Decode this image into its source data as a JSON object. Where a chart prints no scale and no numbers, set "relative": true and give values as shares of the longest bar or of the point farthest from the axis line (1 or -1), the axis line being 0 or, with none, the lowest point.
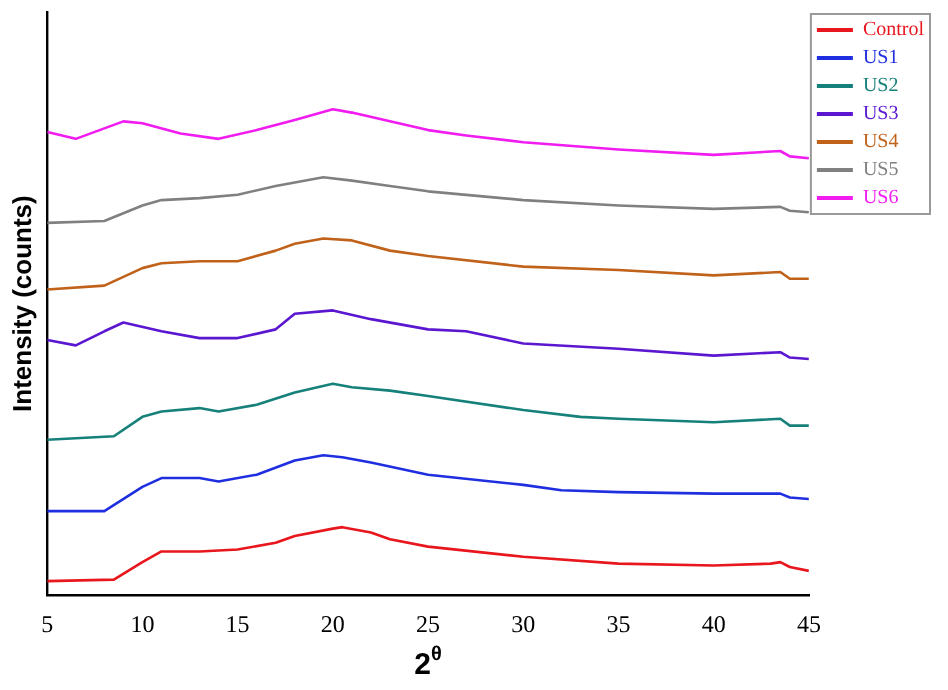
{
  "chart_data": {
    "type": "line",
    "xlabel": "2$^{θ}$",
    "ylabel": "Intensity (counts)",
    "relative": true,
    "xlim": [
      5,
      45
    ],
    "xticks": [
      5,
      10,
      15,
      20,
      25,
      30,
      35,
      40,
      45
    ],
    "tick_labels": "x",
    "grid": false,
    "legend": "top right",
    "marker": "none",
    "line_style": "solid",
    "series": [
      {
        "name": "Control",
        "color": "#e8161d",
        "x": [
          5,
          8.5,
          10,
          11,
          13,
          15,
          17,
          18,
          20,
          20.5,
          22,
          23,
          25,
          30,
          35,
          40,
          43,
          43.5,
          44,
          45
        ],
        "values": [
          0.029,
          0.032,
          0.068,
          0.09,
          0.09,
          0.094,
          0.108,
          0.122,
          0.137,
          0.14,
          0.129,
          0.115,
          0.1,
          0.079,
          0.065,
          0.061,
          0.065,
          0.068,
          0.058,
          0.05
        ]
      },
      {
        "name": "US1",
        "color": "#1f2fe0",
        "x": [
          5,
          8,
          10,
          11,
          13,
          14,
          16,
          18,
          19.5,
          20.5,
          22,
          25,
          30,
          32,
          35,
          40,
          43.5,
          44,
          45
        ],
        "values": [
          0.173,
          0.173,
          0.223,
          0.241,
          0.241,
          0.234,
          0.248,
          0.277,
          0.288,
          0.284,
          0.273,
          0.248,
          0.227,
          0.216,
          0.212,
          0.209,
          0.209,
          0.201,
          0.198
        ]
      },
      {
        "name": "US2",
        "color": "#16807a",
        "x": [
          5,
          8.5,
          10,
          11,
          13,
          14,
          16,
          18,
          20,
          21,
          23,
          25,
          30,
          33,
          35,
          40,
          43.5,
          44,
          45
        ],
        "values": [
          0.32,
          0.327,
          0.367,
          0.378,
          0.385,
          0.378,
          0.392,
          0.417,
          0.435,
          0.428,
          0.421,
          0.41,
          0.381,
          0.367,
          0.363,
          0.356,
          0.363,
          0.349,
          0.349
        ]
      },
      {
        "name": "US3",
        "color": "#5b17d0",
        "x": [
          5,
          6.5,
          8,
          9,
          11,
          13,
          15,
          17,
          18,
          20,
          22,
          25,
          27,
          30,
          35,
          40,
          43.5,
          44,
          45
        ],
        "values": [
          0.525,
          0.514,
          0.543,
          0.561,
          0.543,
          0.529,
          0.529,
          0.547,
          0.579,
          0.586,
          0.568,
          0.547,
          0.543,
          0.518,
          0.507,
          0.493,
          0.5,
          0.489,
          0.486
        ]
      },
      {
        "name": "US4",
        "color": "#c0621a",
        "x": [
          5,
          8,
          10,
          11,
          13,
          15,
          17,
          18,
          19.5,
          21,
          23,
          25,
          30,
          35,
          40,
          43.5,
          44,
          45
        ],
        "values": [
          0.629,
          0.637,
          0.673,
          0.683,
          0.687,
          0.687,
          0.709,
          0.723,
          0.734,
          0.73,
          0.709,
          0.698,
          0.676,
          0.669,
          0.658,
          0.665,
          0.651,
          0.651
        ]
      },
      {
        "name": "US5",
        "color": "#808080",
        "x": [
          5,
          8,
          10,
          11,
          13,
          15,
          17,
          19.5,
          21,
          23,
          25,
          30,
          35,
          40,
          43.5,
          44,
          45
        ],
        "values": [
          0.766,
          0.77,
          0.802,
          0.813,
          0.817,
          0.824,
          0.842,
          0.86,
          0.853,
          0.842,
          0.831,
          0.813,
          0.802,
          0.795,
          0.799,
          0.791,
          0.788
        ]
      },
      {
        "name": "US6",
        "color": "#f01cf0",
        "x": [
          5,
          6.5,
          9,
          10,
          12,
          14,
          16,
          18,
          20,
          21,
          23,
          25,
          27,
          30,
          35,
          40,
          43.5,
          44,
          45
        ],
        "values": [
          0.953,
          0.939,
          0.975,
          0.971,
          0.95,
          0.939,
          0.957,
          0.978,
          1,
          0.993,
          0.975,
          0.957,
          0.946,
          0.932,
          0.917,
          0.906,
          0.914,
          0.903,
          0.899
        ]
      }
    ]
  }
}
